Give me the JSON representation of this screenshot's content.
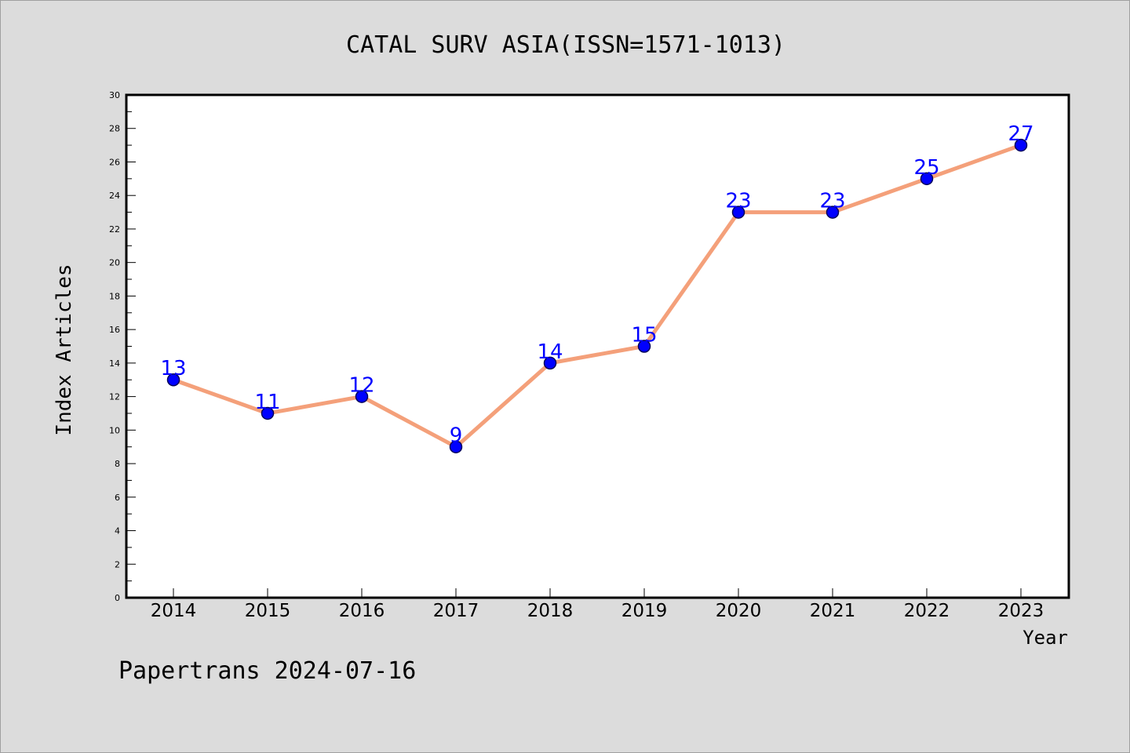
{
  "footer": {
    "text": "Papertrans 2024-07-16"
  },
  "chart_data": {
    "type": "line",
    "title": "CATAL SURV ASIA(ISSN=1571-1013)",
    "xlabel": "Year",
    "ylabel": "Index Articles",
    "x": [
      "2014",
      "2015",
      "2016",
      "2017",
      "2018",
      "2019",
      "2020",
      "2021",
      "2022",
      "2023"
    ],
    "series": [
      {
        "values": [
          13,
          11,
          12,
          9,
          14,
          15,
          23,
          23,
          25,
          27
        ]
      }
    ],
    "ylim": [
      0,
      30
    ],
    "ytick_step": 2,
    "grid": false,
    "legend": "none",
    "colors": {
      "line": "#f4a07a",
      "marker": "#0000ff",
      "data_label": "#0000ff",
      "axis": "#000000",
      "background": "#dcdcdc",
      "plot_background": "#ffffff"
    }
  }
}
